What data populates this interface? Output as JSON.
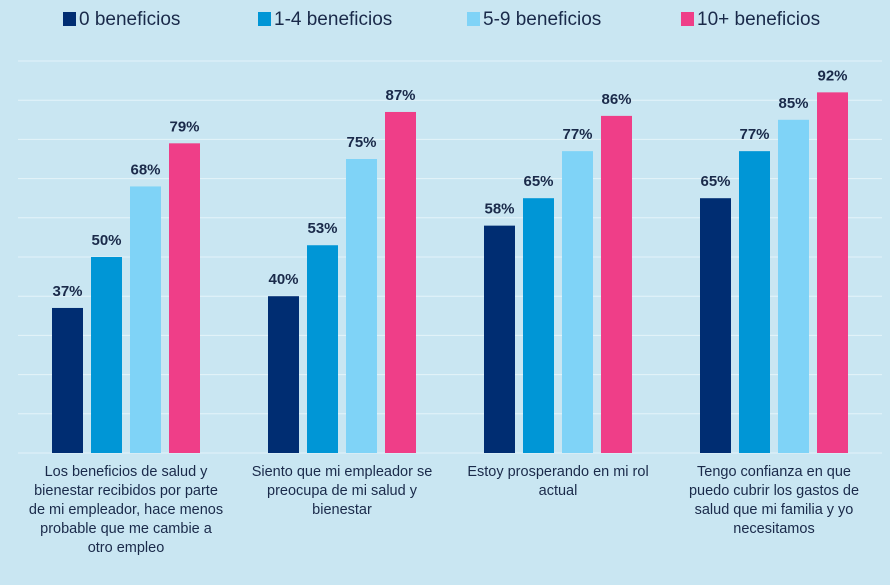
{
  "chart_data": {
    "type": "bar",
    "categories": [
      "Los beneficios de salud y bienestar recibidos por parte de mi empleador, hace menos probable que me cambie a otro empleo",
      "Siento que mi empleador se preocupa de mi salud y bienestar",
      "Estoy prosperando en mi rol actual",
      "Tengo confianza en que puedo cubrir los gastos de salud que mi familia y yo necesitamos"
    ],
    "series": [
      {
        "name": "0 beneficios",
        "color": "#002d72",
        "values": [
          37,
          40,
          58,
          65
        ],
        "value_labels": [
          "37%",
          "40%",
          "58%",
          "65%"
        ]
      },
      {
        "name": "1-4 beneficios",
        "color": "#0096d6",
        "values": [
          50,
          53,
          65,
          77
        ],
        "value_labels": [
          "50%",
          "53%",
          "65%",
          "77%"
        ]
      },
      {
        "name": "5-9 beneficios",
        "color": "#7fd3f7",
        "values": [
          68,
          75,
          77,
          85
        ],
        "value_labels": [
          "68%",
          "75%",
          "77%",
          "85%"
        ]
      },
      {
        "name": "10+ beneficios",
        "color": "#ef3e88",
        "values": [
          79,
          87,
          86,
          92
        ],
        "value_labels": [
          "79%",
          "87%",
          "86%",
          "92%"
        ]
      }
    ],
    "ylim": [
      0,
      100
    ],
    "yticks": [
      0,
      10,
      20,
      30,
      40,
      50,
      60,
      70,
      80,
      90,
      100
    ],
    "grid": true,
    "legend": "top"
  }
}
